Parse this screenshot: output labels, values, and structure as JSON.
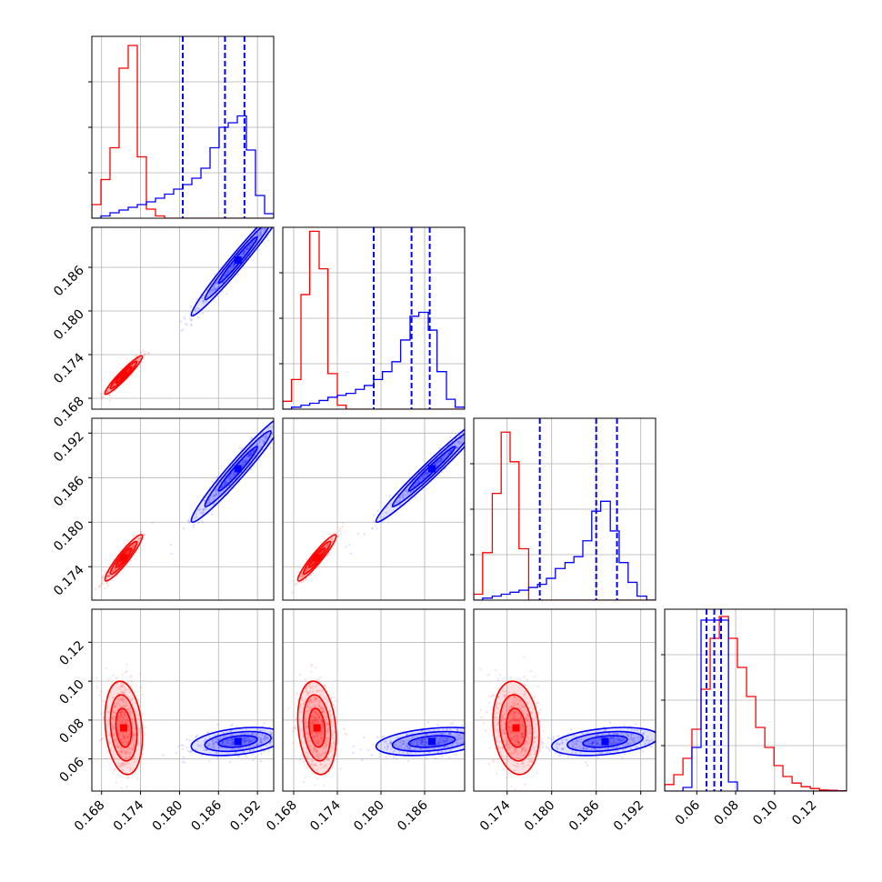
{
  "chart_data": {
    "type": "corner",
    "parameters": [
      "",
      "",
      "",
      ""
    ],
    "grid": true,
    "series": [
      {
        "color": "#ff0000",
        "dashed_quantiles": false,
        "centers": [
          0.1714,
          0.1712,
          0.1752,
          0.076
        ],
        "widths": [
          0.0012,
          0.0011,
          0.0013,
          0.01
        ],
        "corr": [
          [
            1,
            0.95,
            0.93,
            -0.2
          ],
          [
            0.95,
            1,
            0.94,
            -0.2
          ],
          [
            0.93,
            0.94,
            1,
            -0.15
          ],
          [
            -0.2,
            -0.2,
            -0.15,
            1
          ]
        ]
      },
      {
        "color": "#0000ff",
        "dashed_quantiles": true,
        "centers": [
          0.189,
          0.187,
          0.1872,
          0.069
        ],
        "widths": [
          0.003,
          0.0032,
          0.003,
          0.003
        ],
        "corr": [
          [
            1,
            0.98,
            0.97,
            0.35
          ],
          [
            0.98,
            1,
            0.98,
            0.35
          ],
          [
            0.97,
            0.98,
            1,
            0.35
          ],
          [
            0.35,
            0.35,
            0.35,
            1
          ]
        ]
      }
    ],
    "ranges": [
      [
        0.1665,
        0.1945
      ],
      [
        0.1665,
        0.1915
      ],
      [
        0.1695,
        0.194
      ],
      [
        0.0435,
        0.137
      ]
    ],
    "axis_ticks": [
      [
        0.168,
        0.174,
        0.18,
        0.186,
        0.192
      ],
      [
        0.168,
        0.174,
        0.18,
        0.186
      ],
      [
        0.174,
        0.18,
        0.186,
        0.192
      ],
      [
        0.06,
        0.08,
        0.1,
        0.12
      ]
    ],
    "x_tick_labels": [
      [
        "0.168",
        "0.174",
        "0.180",
        "0.186",
        "0.192"
      ],
      [
        "0.168",
        "0.174",
        "0.180",
        "0.186"
      ],
      [
        "0.174",
        "0.180",
        "0.186",
        "0.192"
      ],
      [
        "0.06",
        "0.08",
        "0.10",
        "0.12"
      ]
    ],
    "y_tick_labels": [
      [],
      [
        "0.168",
        "0.174",
        "0.180",
        "0.186"
      ],
      [
        "0.174",
        "0.180",
        "0.186",
        "0.192"
      ],
      [
        "0.06",
        "0.08",
        "0.10",
        "0.12"
      ]
    ],
    "diagonal_histograms": [
      {
        "bins": [
          0.1665,
          0.1679,
          0.1693,
          0.1707,
          0.1721,
          0.1735,
          0.1749,
          0.1763,
          0.1777,
          0.1791,
          0.1805,
          0.1819,
          0.1833,
          0.1847,
          0.1861,
          0.1875,
          0.1889,
          0.1903,
          0.1917,
          0.1931,
          0.1945
        ],
        "red": [
          30,
          85,
          155,
          330,
          380,
          135,
          20,
          5,
          0,
          0,
          0,
          0,
          0,
          0,
          0,
          0,
          0,
          0,
          0,
          0
        ],
        "blue": [
          0,
          5,
          12,
          18,
          24,
          30,
          36,
          44,
          53,
          64,
          74,
          88,
          110,
          155,
          200,
          210,
          225,
          150,
          50,
          10
        ],
        "blue_quantiles": [
          0.1805,
          0.187,
          0.19
        ],
        "max_count": 400
      },
      {
        "bins": [
          0.1665,
          0.1677,
          0.169,
          0.1702,
          0.1715,
          0.1727,
          0.174,
          0.1752,
          0.1765,
          0.1777,
          0.179,
          0.1802,
          0.1815,
          0.1827,
          0.184,
          0.1852,
          0.1865,
          0.1877,
          0.189,
          0.1902,
          0.1915
        ],
        "red": [
          20,
          75,
          290,
          450,
          355,
          90,
          10,
          0,
          0,
          0,
          0,
          0,
          0,
          0,
          0,
          0,
          0,
          0,
          0,
          0
        ],
        "blue": [
          0,
          5,
          10,
          15,
          22,
          30,
          35,
          40,
          50,
          60,
          75,
          95,
          120,
          175,
          235,
          245,
          200,
          95,
          25,
          5
        ],
        "blue_quantiles": [
          0.179,
          0.1842,
          0.1867
        ],
        "max_count": 460
      },
      {
        "bins": [
          0.1695,
          0.1707,
          0.172,
          0.1732,
          0.1744,
          0.1756,
          0.1769,
          0.1781,
          0.1793,
          0.1805,
          0.1818,
          0.183,
          0.1842,
          0.1854,
          0.1866,
          0.1879,
          0.1891,
          0.1903,
          0.1915,
          0.1928,
          0.194
        ],
        "red": [
          15,
          120,
          270,
          425,
          350,
          130,
          0,
          0,
          0,
          0,
          0,
          0,
          0,
          0,
          0,
          0,
          0,
          0,
          0,
          0
        ],
        "blue": [
          0,
          5,
          10,
          15,
          20,
          25,
          32,
          40,
          55,
          80,
          95,
          110,
          150,
          225,
          250,
          175,
          95,
          45,
          10,
          0
        ],
        "blue_quantiles": [
          0.1784,
          0.186,
          0.1888
        ],
        "max_count": 460
      },
      {
        "bins": [
          0.0435,
          0.0482,
          0.0529,
          0.0575,
          0.0622,
          0.0669,
          0.0716,
          0.0763,
          0.0809,
          0.0856,
          0.0903,
          0.095,
          0.0997,
          0.1043,
          0.109,
          0.1137,
          0.1184,
          0.1231,
          0.1277,
          0.1324,
          0.137
        ],
        "red": [
          18,
          45,
          90,
          170,
          280,
          420,
          480,
          420,
          340,
          260,
          175,
          120,
          70,
          40,
          22,
          12,
          7,
          3,
          2,
          1
        ],
        "blue": [
          0,
          0,
          10,
          120,
          470,
          470,
          470,
          25,
          0,
          0,
          0,
          0,
          0,
          0,
          0,
          0,
          0,
          0,
          0,
          0
        ],
        "blue_quantiles": [
          0.065,
          0.069,
          0.0725
        ],
        "max_count": 500
      }
    ]
  }
}
